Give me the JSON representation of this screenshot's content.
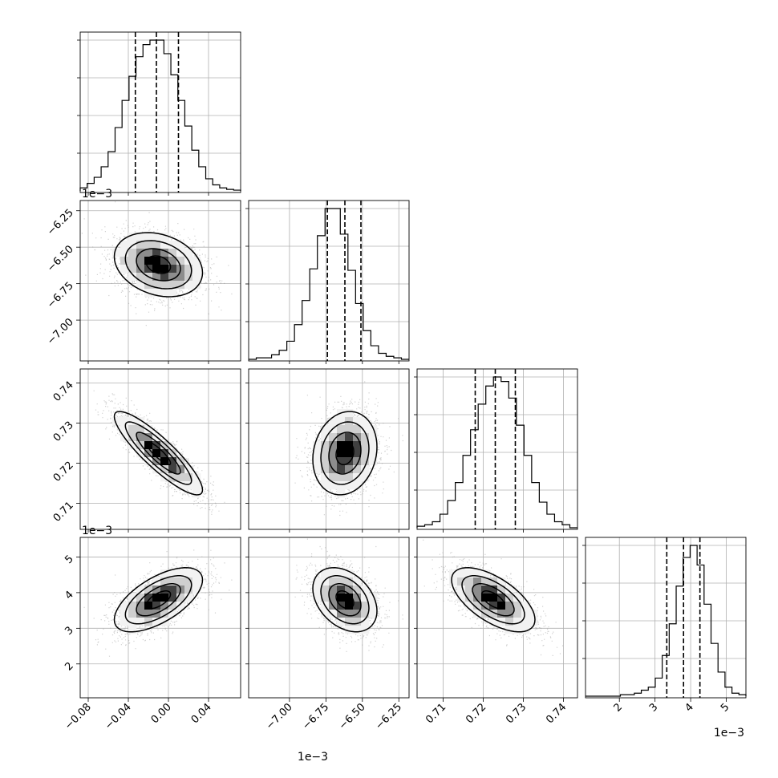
{
  "chart_data": {
    "type": "corner",
    "grid": true,
    "parameters": [
      {
        "range": [
          -0.088,
          0.072
        ],
        "ticks": [
          -0.08,
          -0.04,
          0.0,
          0.04
        ],
        "tick_labels": [
          "−0.08",
          "−0.04",
          "0.00",
          "0.04"
        ],
        "offset_label": "",
        "quantiles": [
          -0.033,
          -0.012,
          0.01
        ]
      },
      {
        "range": [
          -7.28,
          -6.18
        ],
        "ticks": [
          -7.0,
          -6.75,
          -6.5,
          -6.25
        ],
        "tick_labels": [
          "−7.00",
          "−6.75",
          "−6.50",
          "−6.25"
        ],
        "offset_label": "1e−3",
        "quantiles": [
          -6.74,
          -6.62,
          -6.51
        ]
      },
      {
        "range": [
          0.7035,
          0.7435
        ],
        "ticks": [
          0.71,
          0.72,
          0.73,
          0.74
        ],
        "tick_labels": [
          "0.71",
          "0.72",
          "0.73",
          "0.74"
        ],
        "offset_label": "",
        "quantiles": [
          0.718,
          0.723,
          0.728
        ]
      },
      {
        "range": [
          1.05,
          5.55
        ],
        "ticks": [
          2,
          3,
          4,
          5
        ],
        "tick_labels": [
          "2",
          "3",
          "4",
          "5"
        ],
        "offset_label": "1e−3",
        "quantiles": [
          3.33,
          3.8,
          4.26
        ]
      }
    ],
    "row_offset_labels": [
      "",
      "1e−3",
      "",
      "1e−3"
    ],
    "histograms": [
      [
        0.02,
        0.05,
        0.09,
        0.16,
        0.26,
        0.42,
        0.6,
        0.76,
        0.89,
        0.97,
        1.0,
        1.0,
        0.91,
        0.77,
        0.6,
        0.43,
        0.27,
        0.16,
        0.08,
        0.04,
        0.02,
        0.01,
        0.005
      ],
      [
        0.0,
        0.01,
        0.01,
        0.03,
        0.06,
        0.12,
        0.23,
        0.39,
        0.6,
        0.82,
        1.0,
        1.0,
        0.83,
        0.59,
        0.37,
        0.19,
        0.09,
        0.04,
        0.02,
        0.01,
        0.0
      ],
      [
        0.01,
        0.02,
        0.04,
        0.09,
        0.18,
        0.3,
        0.48,
        0.65,
        0.82,
        0.94,
        1.0,
        0.97,
        0.86,
        0.68,
        0.48,
        0.3,
        0.17,
        0.09,
        0.04,
        0.02,
        0.0
      ],
      [
        0.0,
        0.0,
        0.0,
        0.0,
        0.0,
        0.01,
        0.01,
        0.02,
        0.04,
        0.06,
        0.12,
        0.27,
        0.48,
        0.73,
        0.92,
        1.0,
        0.87,
        0.61,
        0.35,
        0.16,
        0.06,
        0.02,
        0.01
      ]
    ],
    "pairs": [
      {
        "row": 1,
        "col": 0,
        "mean": [
          -0.01,
          -6.62
        ],
        "std": [
          0.022,
          0.11
        ],
        "corr": -0.25
      },
      {
        "row": 2,
        "col": 0,
        "mean": [
          -0.01,
          0.7225
        ],
        "std": [
          0.022,
          0.0052
        ],
        "corr": -0.88
      },
      {
        "row": 2,
        "col": 1,
        "mean": [
          -6.62,
          0.7225
        ],
        "std": [
          0.11,
          0.0052
        ],
        "corr": 0.15
      },
      {
        "row": 3,
        "col": 0,
        "mean": [
          -0.01,
          3.8
        ],
        "std": [
          0.022,
          0.45
        ],
        "corr": 0.62
      },
      {
        "row": 3,
        "col": 1,
        "mean": [
          -6.62,
          3.8
        ],
        "std": [
          0.11,
          0.45
        ],
        "corr": -0.35
      },
      {
        "row": 3,
        "col": 2,
        "mean": [
          0.7225,
          3.8
        ],
        "std": [
          0.0052,
          0.45
        ],
        "corr": -0.62
      }
    ]
  }
}
